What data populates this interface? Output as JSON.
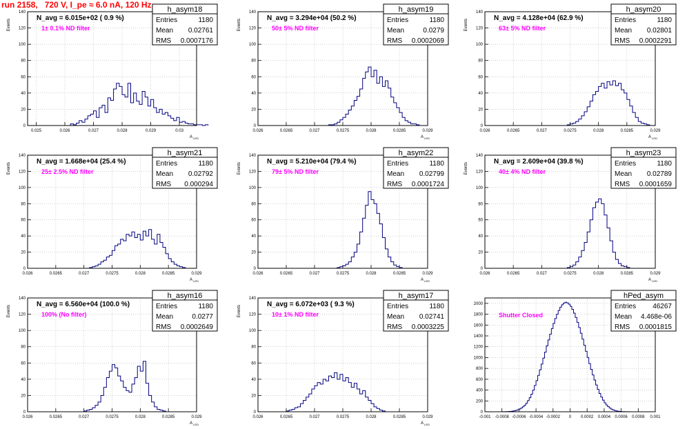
{
  "title": "run 2158,   720 V, I_pe ≈ 6.0 nA, 120 Hz",
  "colors": {
    "title": "#ff0000",
    "histogram": "#000080",
    "annotation": "#ff00ff",
    "grid": "#b0b0b0"
  },
  "chart_data": [
    {
      "type": "bar",
      "name": "h_asym18",
      "header": "N_avg = 6.015e+02 ( 0.9 %)",
      "filter": "1± 0.1% ND filter",
      "stats": {
        "entries": "1180",
        "mean": "0.02761",
        "rms": "0.0007176"
      },
      "ylabel": "Events",
      "xlabel": "A_{LED}",
      "xlim": [
        0.0247,
        0.0306
      ],
      "ylim": [
        0,
        140
      ],
      "xticks": [
        0.025,
        0.026,
        0.027,
        0.028,
        0.029,
        0.03
      ],
      "xtick_labels": [
        "0.025",
        "0.026",
        "0.027",
        "0.028",
        "0.029",
        "0.03"
      ],
      "yticks": [
        0,
        20,
        40,
        60,
        80,
        100,
        120,
        140
      ],
      "ytick_labels": [
        "0",
        "20",
        "40",
        "60",
        "80",
        "100",
        "120",
        "140"
      ],
      "bins_x0": 0.0262,
      "bin_width": 0.0001,
      "values": [
        2,
        1,
        3,
        6,
        4,
        8,
        12,
        14,
        18,
        10,
        22,
        25,
        16,
        34,
        31,
        45,
        52,
        48,
        38,
        35,
        52,
        28,
        40,
        30,
        26,
        42,
        35,
        24,
        32,
        22,
        16,
        20,
        14,
        16,
        12,
        9,
        6,
        10,
        4,
        5,
        3,
        2,
        2,
        1,
        1,
        1,
        0,
        1
      ]
    },
    {
      "type": "bar",
      "name": "h_asym19",
      "header": "N_avg = 3.294e+04 (50.2 %)",
      "filter": "50± 5% ND filter",
      "stats": {
        "entries": "1180",
        "mean": "0.0279",
        "rms": "0.0002069"
      },
      "ylabel": "Events",
      "xlabel": "A_{LED}",
      "xlim": [
        0.026,
        0.029
      ],
      "ylim": [
        0,
        140
      ],
      "xticks": [
        0.026,
        0.0265,
        0.027,
        0.0275,
        0.028,
        0.0285,
        0.029
      ],
      "xtick_labels": [
        "0.026",
        "0.0265",
        "0.027",
        "0.0275",
        "0.028",
        "0.0285",
        "0.029"
      ],
      "yticks": [
        0,
        20,
        40,
        60,
        80,
        100,
        120,
        140
      ],
      "ytick_labels": [
        "0",
        "20",
        "40",
        "60",
        "80",
        "100",
        "120",
        "140"
      ],
      "bins_x0": 0.02725,
      "bin_width": 5e-05,
      "values": [
        1,
        1,
        2,
        4,
        7,
        10,
        14,
        19,
        24,
        31,
        36,
        45,
        58,
        66,
        72,
        60,
        68,
        52,
        60,
        48,
        55,
        46,
        35,
        28,
        22,
        16,
        10,
        6,
        4,
        2,
        2,
        1
      ]
    },
    {
      "type": "bar",
      "name": "h_asym20",
      "header": "N_avg = 4.128e+04 (62.9 %)",
      "filter": "63± 5% ND filter",
      "stats": {
        "entries": "1180",
        "mean": "0.02801",
        "rms": "0.0002291"
      },
      "ylabel": "Events",
      "xlabel": "A_{LED}",
      "xlim": [
        0.026,
        0.029
      ],
      "ylim": [
        0,
        140
      ],
      "xticks": [
        0.026,
        0.0265,
        0.027,
        0.0275,
        0.028,
        0.0285,
        0.029
      ],
      "xtick_labels": [
        "0.026",
        "0.0265",
        "0.027",
        "0.0275",
        "0.028",
        "0.0285",
        "0.029"
      ],
      "yticks": [
        0,
        20,
        40,
        60,
        80,
        100,
        120,
        140
      ],
      "ytick_labels": [
        "0",
        "20",
        "40",
        "60",
        "80",
        "100",
        "120",
        "140"
      ],
      "bins_x0": 0.02745,
      "bin_width": 5e-05,
      "values": [
        1,
        2,
        3,
        5,
        8,
        12,
        17,
        23,
        30,
        38,
        42,
        48,
        52,
        46,
        54,
        50,
        55,
        49,
        52,
        44,
        40,
        32,
        24,
        16,
        10,
        5,
        3,
        2,
        1
      ]
    },
    {
      "type": "bar",
      "name": "h_asym21",
      "header": "N_avg = 1.668e+04 (25.4 %)",
      "filter": "25± 2.5% ND filter",
      "stats": {
        "entries": "1180",
        "mean": "0.02792",
        "rms": "0.000294"
      },
      "ylabel": "Events",
      "xlabel": "A_{LED}",
      "xlim": [
        0.026,
        0.029
      ],
      "ylim": [
        0,
        140
      ],
      "xticks": [
        0.026,
        0.0265,
        0.027,
        0.0275,
        0.028,
        0.0285,
        0.029
      ],
      "xtick_labels": [
        "0.026",
        "0.0265",
        "0.027",
        "0.0275",
        "0.028",
        "0.0285",
        "0.029"
      ],
      "yticks": [
        0,
        20,
        40,
        60,
        80,
        100,
        120,
        140
      ],
      "ytick_labels": [
        "0",
        "20",
        "40",
        "60",
        "80",
        "100",
        "120",
        "140"
      ],
      "bins_x0": 0.0271,
      "bin_width": 5e-05,
      "values": [
        1,
        2,
        3,
        5,
        8,
        10,
        14,
        16,
        22,
        28,
        30,
        36,
        34,
        42,
        40,
        45,
        38,
        42,
        35,
        46,
        40,
        48,
        36,
        30,
        42,
        32,
        26,
        18,
        12,
        8,
        5,
        3,
        2,
        1
      ]
    },
    {
      "type": "bar",
      "name": "h_asym22",
      "header": "N_avg = 5.210e+04 (79.4 %)",
      "filter": "79± 5% ND filter",
      "stats": {
        "entries": "1180",
        "mean": "0.02799",
        "rms": "0.0001724"
      },
      "ylabel": "Events",
      "xlabel": "A_{LED}",
      "xlim": [
        0.026,
        0.029
      ],
      "ylim": [
        0,
        140
      ],
      "xticks": [
        0.026,
        0.0265,
        0.027,
        0.0275,
        0.028,
        0.0285,
        0.029
      ],
      "xtick_labels": [
        "0.026",
        "0.0265",
        "0.027",
        "0.0275",
        "0.028",
        "0.0285",
        "0.029"
      ],
      "yticks": [
        0,
        20,
        40,
        60,
        80,
        100,
        120,
        140
      ],
      "ytick_labels": [
        "0",
        "20",
        "40",
        "60",
        "80",
        "100",
        "120",
        "140"
      ],
      "bins_x0": 0.0274,
      "bin_width": 5e-05,
      "values": [
        1,
        2,
        3,
        5,
        8,
        14,
        20,
        30,
        45,
        62,
        78,
        95,
        85,
        80,
        68,
        55,
        38,
        24,
        14,
        8,
        4,
        2,
        1
      ]
    },
    {
      "type": "bar",
      "name": "h_asym23",
      "header": "N_avg = 2.609e+04 (39.8 %)",
      "filter": "40± 4% ND filter",
      "stats": {
        "entries": "1180",
        "mean": "0.02789",
        "rms": "0.0001659"
      },
      "ylabel": "Events",
      "xlabel": "A_{LED}",
      "xlim": [
        0.026,
        0.029
      ],
      "ylim": [
        0,
        140
      ],
      "xticks": [
        0.026,
        0.0265,
        0.027,
        0.0275,
        0.028,
        0.0285,
        0.029
      ],
      "xtick_labels": [
        "0.026",
        "0.0265",
        "0.027",
        "0.0275",
        "0.028",
        "0.0285",
        "0.029"
      ],
      "yticks": [
        0,
        20,
        40,
        60,
        80,
        100,
        120,
        140
      ],
      "ytick_labels": [
        "0",
        "20",
        "40",
        "60",
        "80",
        "100",
        "120",
        "140"
      ],
      "bins_x0": 0.02745,
      "bin_width": 5e-05,
      "values": [
        1,
        2,
        4,
        8,
        14,
        22,
        32,
        45,
        60,
        75,
        82,
        86,
        80,
        66,
        50,
        34,
        20,
        11,
        6,
        3,
        2,
        1
      ]
    },
    {
      "type": "bar",
      "name": "h_asym16",
      "header": "N_avg = 6.560e+04 (100.0 %)",
      "filter": "100% (No filter)",
      "stats": {
        "entries": "1180",
        "mean": "0.0277",
        "rms": "0.0002649"
      },
      "ylabel": "Events",
      "xlabel": "A_{LED}",
      "xlim": [
        0.026,
        0.029
      ],
      "ylim": [
        0,
        140
      ],
      "xticks": [
        0.026,
        0.0265,
        0.027,
        0.0275,
        0.028,
        0.0285,
        0.029
      ],
      "xtick_labels": [
        "0.026",
        "0.0265",
        "0.027",
        "0.0275",
        "0.028",
        "0.0285",
        "0.029"
      ],
      "yticks": [
        0,
        20,
        40,
        60,
        80,
        100,
        120,
        140
      ],
      "ytick_labels": [
        "0",
        "20",
        "40",
        "60",
        "80",
        "100",
        "120",
        "140"
      ],
      "bins_x0": 0.027,
      "bin_width": 5e-05,
      "values": [
        1,
        2,
        3,
        5,
        8,
        12,
        20,
        30,
        42,
        50,
        58,
        54,
        44,
        38,
        30,
        26,
        24,
        34,
        42,
        56,
        50,
        62,
        35,
        20,
        12,
        6,
        3,
        2,
        1
      ]
    },
    {
      "type": "bar",
      "name": "h_asym17",
      "header": "N_avg = 6.072e+03 ( 9.3 %)",
      "filter": "10± 1% ND filter",
      "stats": {
        "entries": "1180",
        "mean": "0.02741",
        "rms": "0.0003225"
      },
      "ylabel": "Events",
      "xlabel": "A_{LED}",
      "xlim": [
        0.026,
        0.029
      ],
      "ylim": [
        0,
        140
      ],
      "xticks": [
        0.026,
        0.0265,
        0.027,
        0.0275,
        0.028,
        0.0285,
        0.029
      ],
      "xtick_labels": [
        "0.026",
        "0.0265",
        "0.027",
        "0.0275",
        "0.028",
        "0.0285",
        "0.029"
      ],
      "yticks": [
        0,
        20,
        40,
        60,
        80,
        100,
        120,
        140
      ],
      "ytick_labels": [
        "0",
        "20",
        "40",
        "60",
        "80",
        "100",
        "120",
        "140"
      ],
      "bins_x0": 0.0265,
      "bin_width": 5e-05,
      "values": [
        1,
        2,
        3,
        5,
        6,
        10,
        14,
        18,
        22,
        28,
        32,
        36,
        34,
        40,
        38,
        44,
        42,
        48,
        40,
        46,
        38,
        42,
        36,
        30,
        35,
        28,
        22,
        26,
        18,
        14,
        10,
        6,
        4,
        2,
        1
      ]
    },
    {
      "type": "bar",
      "name": "hPed_asym",
      "header": "",
      "filter": "Shutter Closed",
      "stats": {
        "entries": "46267",
        "mean": "4.468e-06",
        "rms": "0.0001815"
      },
      "ylabel": "",
      "xlabel": "",
      "xlim": [
        -0.001,
        0.001
      ],
      "ylim": [
        0,
        2100
      ],
      "xticks": [
        -0.001,
        -0.0008,
        -0.0006,
        -0.0004,
        -0.0002,
        0,
        0.0002,
        0.0004,
        0.0006,
        0.0008,
        0.001
      ],
      "xtick_labels": [
        "-0.001",
        "-0.0008",
        "-0.0006",
        "-0.0004",
        "-0.0002",
        "0",
        "0.0002",
        "0.0004",
        "0.0006",
        "0.0008",
        "0.001"
      ],
      "yticks": [
        0,
        200,
        400,
        600,
        800,
        1000,
        1200,
        1400,
        1600,
        1800,
        2000
      ],
      "ytick_labels": [
        "0",
        "200",
        "400",
        "600",
        "800",
        "1000",
        "1200",
        "1400",
        "1600",
        "1800",
        "2000"
      ],
      "bins_x0": -0.0008,
      "bin_width": 2e-05,
      "values": [
        1,
        2,
        3,
        4,
        6,
        8,
        12,
        18,
        26,
        36,
        50,
        68,
        92,
        120,
        158,
        205,
        260,
        325,
        400,
        485,
        575,
        672,
        775,
        880,
        990,
        1100,
        1215,
        1325,
        1430,
        1535,
        1630,
        1720,
        1800,
        1870,
        1930,
        1975,
        2005,
        2020,
        2010,
        1985,
        1945,
        1890,
        1820,
        1740,
        1650,
        1555,
        1450,
        1340,
        1228,
        1115,
        1002,
        890,
        782,
        680,
        585,
        495,
        412,
        338,
        272,
        215,
        166,
        126,
        94,
        68,
        48,
        33,
        22,
        15,
        10,
        6,
        4,
        3,
        2,
        1,
        1
      ]
    }
  ]
}
